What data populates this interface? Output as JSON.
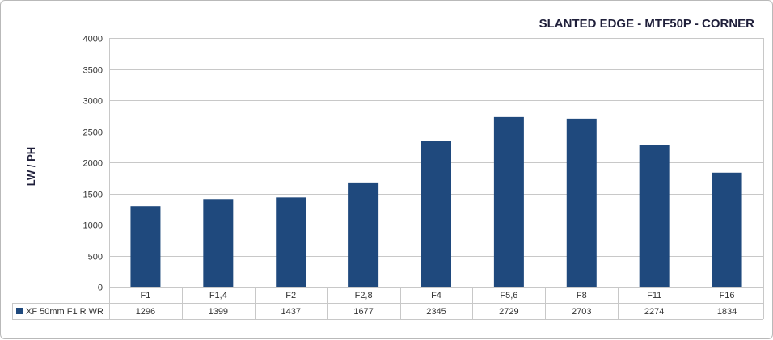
{
  "chart_data": {
    "type": "bar",
    "title": "SLANTED EDGE - MTF50P - CORNER",
    "ylabel": "LW / PH",
    "xlabel": "",
    "ylim": [
      0,
      4000
    ],
    "yticks": [
      0,
      500,
      1000,
      1500,
      2000,
      2500,
      3000,
      3500,
      4000
    ],
    "grid": true,
    "legend": "data-table-left",
    "categories": [
      "F1",
      "F1,4",
      "F2",
      "F2,8",
      "F4",
      "F5,6",
      "F8",
      "F11",
      "F16"
    ],
    "series": [
      {
        "name": "XF 50mm F1 R WR",
        "color": "#1f497d",
        "values": [
          1296,
          1399,
          1437,
          1677,
          2345,
          2729,
          2703,
          2274,
          1834
        ]
      }
    ]
  }
}
